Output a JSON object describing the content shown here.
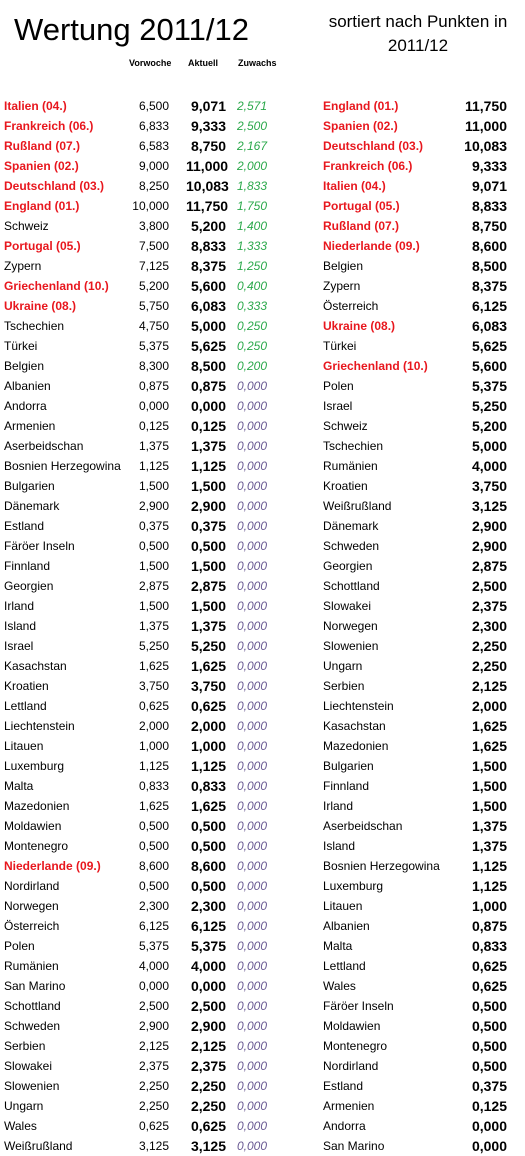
{
  "header": {
    "title": "Wertung 2011/12",
    "subtitle": "sortiert nach Punkten in 2011/12",
    "col_vorwoche": "Vorwoche",
    "col_aktuell": "Aktuell",
    "col_zuwachs": "Zuwachs"
  },
  "colors": {
    "highlight": "#e8171e",
    "positive": "#2aa84a",
    "zero": "#6a5a93"
  },
  "left_table": [
    {
      "name": "Italien (04.)",
      "vorwoche": "6,500",
      "aktuell": "9,071",
      "zuwachs": "2,571",
      "highlight": true
    },
    {
      "name": "Frankreich (06.)",
      "vorwoche": "6,833",
      "aktuell": "9,333",
      "zuwachs": "2,500",
      "highlight": true
    },
    {
      "name": "Rußland (07.)",
      "vorwoche": "6,583",
      "aktuell": "8,750",
      "zuwachs": "2,167",
      "highlight": true
    },
    {
      "name": "Spanien (02.)",
      "vorwoche": "9,000",
      "aktuell": "11,000",
      "zuwachs": "2,000",
      "highlight": true
    },
    {
      "name": "Deutschland (03.)",
      "vorwoche": "8,250",
      "aktuell": "10,083",
      "zuwachs": "1,833",
      "highlight": true
    },
    {
      "name": "England (01.)",
      "vorwoche": "10,000",
      "aktuell": "11,750",
      "zuwachs": "1,750",
      "highlight": true
    },
    {
      "name": "Schweiz",
      "vorwoche": "3,800",
      "aktuell": "5,200",
      "zuwachs": "1,400",
      "highlight": false
    },
    {
      "name": "Portugal (05.)",
      "vorwoche": "7,500",
      "aktuell": "8,833",
      "zuwachs": "1,333",
      "highlight": true
    },
    {
      "name": "Zypern",
      "vorwoche": "7,125",
      "aktuell": "8,375",
      "zuwachs": "1,250",
      "highlight": false
    },
    {
      "name": "Griechenland (10.)",
      "vorwoche": "5,200",
      "aktuell": "5,600",
      "zuwachs": "0,400",
      "highlight": true
    },
    {
      "name": "Ukraine (08.)",
      "vorwoche": "5,750",
      "aktuell": "6,083",
      "zuwachs": "0,333",
      "highlight": true
    },
    {
      "name": "Tschechien",
      "vorwoche": "4,750",
      "aktuell": "5,000",
      "zuwachs": "0,250",
      "highlight": false
    },
    {
      "name": "Türkei",
      "vorwoche": "5,375",
      "aktuell": "5,625",
      "zuwachs": "0,250",
      "highlight": false
    },
    {
      "name": "Belgien",
      "vorwoche": "8,300",
      "aktuell": "8,500",
      "zuwachs": "0,200",
      "highlight": false
    },
    {
      "name": "Albanien",
      "vorwoche": "0,875",
      "aktuell": "0,875",
      "zuwachs": "0,000",
      "highlight": false
    },
    {
      "name": "Andorra",
      "vorwoche": "0,000",
      "aktuell": "0,000",
      "zuwachs": "0,000",
      "highlight": false
    },
    {
      "name": "Armenien",
      "vorwoche": "0,125",
      "aktuell": "0,125",
      "zuwachs": "0,000",
      "highlight": false
    },
    {
      "name": "Aserbeidschan",
      "vorwoche": "1,375",
      "aktuell": "1,375",
      "zuwachs": "0,000",
      "highlight": false
    },
    {
      "name": "Bosnien Herzegowina",
      "vorwoche": "1,125",
      "aktuell": "1,125",
      "zuwachs": "0,000",
      "highlight": false
    },
    {
      "name": "Bulgarien",
      "vorwoche": "1,500",
      "aktuell": "1,500",
      "zuwachs": "0,000",
      "highlight": false
    },
    {
      "name": "Dänemark",
      "vorwoche": "2,900",
      "aktuell": "2,900",
      "zuwachs": "0,000",
      "highlight": false
    },
    {
      "name": "Estland",
      "vorwoche": "0,375",
      "aktuell": "0,375",
      "zuwachs": "0,000",
      "highlight": false
    },
    {
      "name": "Färöer Inseln",
      "vorwoche": "0,500",
      "aktuell": "0,500",
      "zuwachs": "0,000",
      "highlight": false
    },
    {
      "name": "Finnland",
      "vorwoche": "1,500",
      "aktuell": "1,500",
      "zuwachs": "0,000",
      "highlight": false
    },
    {
      "name": "Georgien",
      "vorwoche": "2,875",
      "aktuell": "2,875",
      "zuwachs": "0,000",
      "highlight": false
    },
    {
      "name": "Irland",
      "vorwoche": "1,500",
      "aktuell": "1,500",
      "zuwachs": "0,000",
      "highlight": false
    },
    {
      "name": "Island",
      "vorwoche": "1,375",
      "aktuell": "1,375",
      "zuwachs": "0,000",
      "highlight": false
    },
    {
      "name": "Israel",
      "vorwoche": "5,250",
      "aktuell": "5,250",
      "zuwachs": "0,000",
      "highlight": false
    },
    {
      "name": "Kasachstan",
      "vorwoche": "1,625",
      "aktuell": "1,625",
      "zuwachs": "0,000",
      "highlight": false
    },
    {
      "name": "Kroatien",
      "vorwoche": "3,750",
      "aktuell": "3,750",
      "zuwachs": "0,000",
      "highlight": false
    },
    {
      "name": "Lettland",
      "vorwoche": "0,625",
      "aktuell": "0,625",
      "zuwachs": "0,000",
      "highlight": false
    },
    {
      "name": "Liechtenstein",
      "vorwoche": "2,000",
      "aktuell": "2,000",
      "zuwachs": "0,000",
      "highlight": false
    },
    {
      "name": "Litauen",
      "vorwoche": "1,000",
      "aktuell": "1,000",
      "zuwachs": "0,000",
      "highlight": false
    },
    {
      "name": "Luxemburg",
      "vorwoche": "1,125",
      "aktuell": "1,125",
      "zuwachs": "0,000",
      "highlight": false
    },
    {
      "name": "Malta",
      "vorwoche": "0,833",
      "aktuell": "0,833",
      "zuwachs": "0,000",
      "highlight": false
    },
    {
      "name": "Mazedonien",
      "vorwoche": "1,625",
      "aktuell": "1,625",
      "zuwachs": "0,000",
      "highlight": false
    },
    {
      "name": "Moldawien",
      "vorwoche": "0,500",
      "aktuell": "0,500",
      "zuwachs": "0,000",
      "highlight": false
    },
    {
      "name": "Montenegro",
      "vorwoche": "0,500",
      "aktuell": "0,500",
      "zuwachs": "0,000",
      "highlight": false
    },
    {
      "name": "Niederlande (09.)",
      "vorwoche": "8,600",
      "aktuell": "8,600",
      "zuwachs": "0,000",
      "highlight": true
    },
    {
      "name": "Nordirland",
      "vorwoche": "0,500",
      "aktuell": "0,500",
      "zuwachs": "0,000",
      "highlight": false
    },
    {
      "name": "Norwegen",
      "vorwoche": "2,300",
      "aktuell": "2,300",
      "zuwachs": "0,000",
      "highlight": false
    },
    {
      "name": "Österreich",
      "vorwoche": "6,125",
      "aktuell": "6,125",
      "zuwachs": "0,000",
      "highlight": false
    },
    {
      "name": "Polen",
      "vorwoche": "5,375",
      "aktuell": "5,375",
      "zuwachs": "0,000",
      "highlight": false
    },
    {
      "name": "Rumänien",
      "vorwoche": "4,000",
      "aktuell": "4,000",
      "zuwachs": "0,000",
      "highlight": false
    },
    {
      "name": "San Marino",
      "vorwoche": "0,000",
      "aktuell": "0,000",
      "zuwachs": "0,000",
      "highlight": false
    },
    {
      "name": "Schottland",
      "vorwoche": "2,500",
      "aktuell": "2,500",
      "zuwachs": "0,000",
      "highlight": false
    },
    {
      "name": "Schweden",
      "vorwoche": "2,900",
      "aktuell": "2,900",
      "zuwachs": "0,000",
      "highlight": false
    },
    {
      "name": "Serbien",
      "vorwoche": "2,125",
      "aktuell": "2,125",
      "zuwachs": "0,000",
      "highlight": false
    },
    {
      "name": "Slowakei",
      "vorwoche": "2,375",
      "aktuell": "2,375",
      "zuwachs": "0,000",
      "highlight": false
    },
    {
      "name": "Slowenien",
      "vorwoche": "2,250",
      "aktuell": "2,250",
      "zuwachs": "0,000",
      "highlight": false
    },
    {
      "name": "Ungarn",
      "vorwoche": "2,250",
      "aktuell": "2,250",
      "zuwachs": "0,000",
      "highlight": false
    },
    {
      "name": "Wales",
      "vorwoche": "0,625",
      "aktuell": "0,625",
      "zuwachs": "0,000",
      "highlight": false
    },
    {
      "name": "Weißrußland",
      "vorwoche": "3,125",
      "aktuell": "3,125",
      "zuwachs": "0,000",
      "highlight": false
    }
  ],
  "right_table": [
    {
      "name": "England (01.)",
      "punkte": "11,750",
      "highlight": true
    },
    {
      "name": "Spanien (02.)",
      "punkte": "11,000",
      "highlight": true
    },
    {
      "name": "Deutschland (03.)",
      "punkte": "10,083",
      "highlight": true
    },
    {
      "name": "Frankreich (06.)",
      "punkte": "9,333",
      "highlight": true
    },
    {
      "name": "Italien (04.)",
      "punkte": "9,071",
      "highlight": true
    },
    {
      "name": "Portugal (05.)",
      "punkte": "8,833",
      "highlight": true
    },
    {
      "name": "Rußland (07.)",
      "punkte": "8,750",
      "highlight": true
    },
    {
      "name": "Niederlande (09.)",
      "punkte": "8,600",
      "highlight": true
    },
    {
      "name": "Belgien",
      "punkte": "8,500",
      "highlight": false
    },
    {
      "name": "Zypern",
      "punkte": "8,375",
      "highlight": false
    },
    {
      "name": "Österreich",
      "punkte": "6,125",
      "highlight": false
    },
    {
      "name": "Ukraine (08.)",
      "punkte": "6,083",
      "highlight": true
    },
    {
      "name": "Türkei",
      "punkte": "5,625",
      "highlight": false
    },
    {
      "name": "Griechenland (10.)",
      "punkte": "5,600",
      "highlight": true
    },
    {
      "name": "Polen",
      "punkte": "5,375",
      "highlight": false
    },
    {
      "name": "Israel",
      "punkte": "5,250",
      "highlight": false
    },
    {
      "name": "Schweiz",
      "punkte": "5,200",
      "highlight": false
    },
    {
      "name": "Tschechien",
      "punkte": "5,000",
      "highlight": false
    },
    {
      "name": "Rumänien",
      "punkte": "4,000",
      "highlight": false
    },
    {
      "name": "Kroatien",
      "punkte": "3,750",
      "highlight": false
    },
    {
      "name": "Weißrußland",
      "punkte": "3,125",
      "highlight": false
    },
    {
      "name": "Dänemark",
      "punkte": "2,900",
      "highlight": false
    },
    {
      "name": "Schweden",
      "punkte": "2,900",
      "highlight": false
    },
    {
      "name": "Georgien",
      "punkte": "2,875",
      "highlight": false
    },
    {
      "name": "Schottland",
      "punkte": "2,500",
      "highlight": false
    },
    {
      "name": "Slowakei",
      "punkte": "2,375",
      "highlight": false
    },
    {
      "name": "Norwegen",
      "punkte": "2,300",
      "highlight": false
    },
    {
      "name": "Slowenien",
      "punkte": "2,250",
      "highlight": false
    },
    {
      "name": "Ungarn",
      "punkte": "2,250",
      "highlight": false
    },
    {
      "name": "Serbien",
      "punkte": "2,125",
      "highlight": false
    },
    {
      "name": "Liechtenstein",
      "punkte": "2,000",
      "highlight": false
    },
    {
      "name": "Kasachstan",
      "punkte": "1,625",
      "highlight": false
    },
    {
      "name": "Mazedonien",
      "punkte": "1,625",
      "highlight": false
    },
    {
      "name": "Bulgarien",
      "punkte": "1,500",
      "highlight": false
    },
    {
      "name": "Finnland",
      "punkte": "1,500",
      "highlight": false
    },
    {
      "name": "Irland",
      "punkte": "1,500",
      "highlight": false
    },
    {
      "name": "Aserbeidschan",
      "punkte": "1,375",
      "highlight": false
    },
    {
      "name": "Island",
      "punkte": "1,375",
      "highlight": false
    },
    {
      "name": "Bosnien Herzegowina",
      "punkte": "1,125",
      "highlight": false
    },
    {
      "name": "Luxemburg",
      "punkte": "1,125",
      "highlight": false
    },
    {
      "name": "Litauen",
      "punkte": "1,000",
      "highlight": false
    },
    {
      "name": "Albanien",
      "punkte": "0,875",
      "highlight": false
    },
    {
      "name": "Malta",
      "punkte": "0,833",
      "highlight": false
    },
    {
      "name": "Lettland",
      "punkte": "0,625",
      "highlight": false
    },
    {
      "name": "Wales",
      "punkte": "0,625",
      "highlight": false
    },
    {
      "name": "Färöer Inseln",
      "punkte": "0,500",
      "highlight": false
    },
    {
      "name": "Moldawien",
      "punkte": "0,500",
      "highlight": false
    },
    {
      "name": "Montenegro",
      "punkte": "0,500",
      "highlight": false
    },
    {
      "name": "Nordirland",
      "punkte": "0,500",
      "highlight": false
    },
    {
      "name": "Estland",
      "punkte": "0,375",
      "highlight": false
    },
    {
      "name": "Armenien",
      "punkte": "0,125",
      "highlight": false
    },
    {
      "name": "Andorra",
      "punkte": "0,000",
      "highlight": false
    },
    {
      "name": "San Marino",
      "punkte": "0,000",
      "highlight": false
    }
  ]
}
